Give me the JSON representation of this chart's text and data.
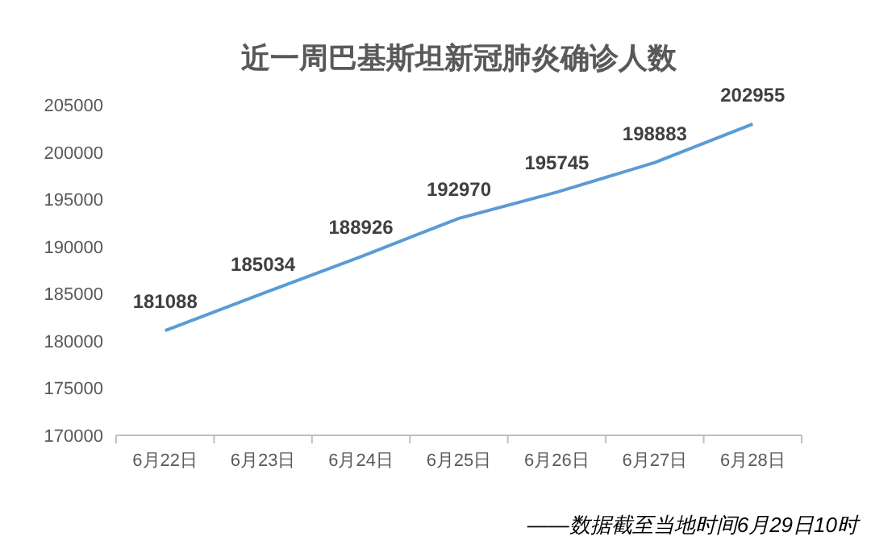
{
  "chart_data": {
    "type": "line",
    "title": "近一周巴基斯坦新冠肺炎确诊人数",
    "categories": [
      "6月22日",
      "6月23日",
      "6月24日",
      "6月25日",
      "6月26日",
      "6月27日",
      "6月28日"
    ],
    "series": [
      {
        "color": "#5b9bd5",
        "values": [
          181088,
          185034,
          188926,
          192970,
          195745,
          198883,
          202955
        ]
      }
    ],
    "ylim": [
      170000,
      205000
    ],
    "yticks": [
      170000,
      175000,
      180000,
      185000,
      190000,
      195000,
      200000,
      205000
    ],
    "data_labels": true,
    "grid": false,
    "marker": "none",
    "line_style": "solid",
    "annotations": [
      "——数据截至当地时间6月29日10时"
    ]
  }
}
